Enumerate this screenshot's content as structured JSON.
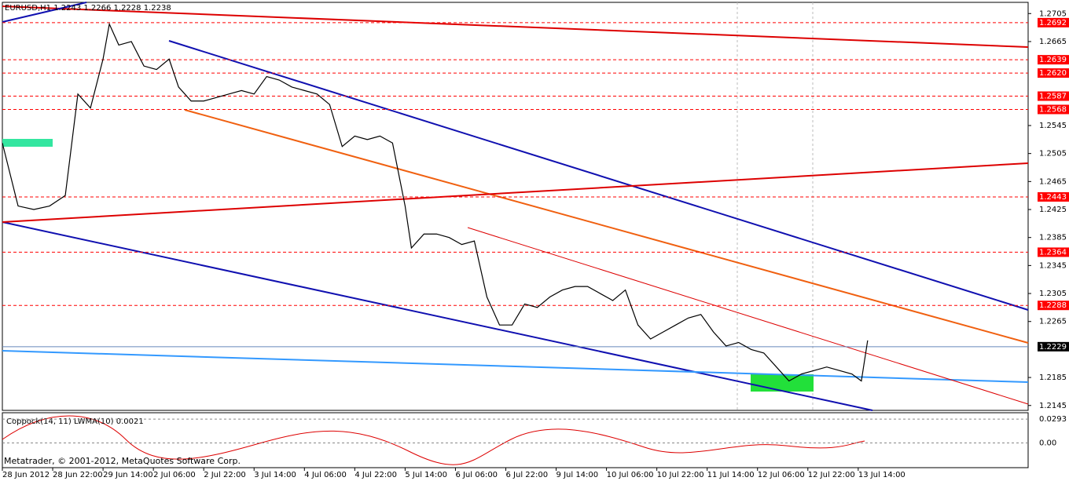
{
  "chart_data": {
    "type": "line",
    "title": "EURUSD,H1  1.2243 1.2266 1.2228 1.2238",
    "x": [
      0,
      5,
      10,
      15,
      20,
      24,
      28,
      32,
      34,
      37,
      41,
      45,
      49,
      53,
      56,
      60,
      64,
      68,
      72,
      76,
      80,
      84,
      88,
      92,
      96,
      100,
      104,
      108,
      112,
      116,
      120,
      124,
      128,
      130,
      134,
      138,
      142,
      146,
      150,
      154,
      158,
      162,
      166,
      170,
      174,
      178,
      182,
      186,
      190,
      194,
      198,
      202,
      206,
      210,
      214,
      218,
      222,
      226,
      230,
      234,
      238,
      242,
      246,
      250,
      254,
      258,
      262,
      266,
      270,
      273,
      275
    ],
    "series": [
      {
        "color": "#000000",
        "values": [
          1.252,
          1.243,
          1.2425,
          1.243,
          1.2445,
          1.259,
          1.257,
          1.264,
          1.269,
          1.266,
          1.2665,
          1.263,
          1.2625,
          1.264,
          1.26,
          1.258,
          1.258,
          1.2585,
          1.259,
          1.2595,
          1.259,
          1.2615,
          1.261,
          1.26,
          1.2595,
          1.259,
          1.2575,
          1.2515,
          1.253,
          1.2525,
          1.253,
          1.252,
          1.243,
          1.237,
          1.239,
          1.239,
          1.2385,
          1.2375,
          1.238,
          1.23,
          1.226,
          1.226,
          1.229,
          1.2285,
          1.23,
          1.231,
          1.2315,
          1.2315,
          1.2305,
          1.2295,
          1.231,
          1.226,
          1.224,
          1.225,
          1.226,
          1.227,
          1.2275,
          1.225,
          1.223,
          1.2235,
          1.2225,
          1.222,
          1.22,
          1.218,
          1.219,
          1.2195,
          1.22,
          1.2195,
          1.219,
          1.218,
          1.2238
        ]
      }
    ],
    "xlim": [
      0,
      326
    ],
    "xticks": [
      {
        "value": 0,
        "label": "28 Jun 2012"
      },
      {
        "value": 16,
        "label": "28 Jun 22:00"
      },
      {
        "value": 32,
        "label": "29 Jun 14:00"
      },
      {
        "value": 48,
        "label": "2 Jul 06:00"
      },
      {
        "value": 64,
        "label": "2 Jul 22:00"
      },
      {
        "value": 80,
        "label": "3 Jul 14:00"
      },
      {
        "value": 96,
        "label": "4 Jul 06:00"
      },
      {
        "value": 112,
        "label": "4 Jul 22:00"
      },
      {
        "value": 128,
        "label": "5 Jul 14:00"
      },
      {
        "value": 144,
        "label": "6 Jul 06:00"
      },
      {
        "value": 160,
        "label": "6 Jul 22:00"
      },
      {
        "value": 176,
        "label": "9 Jul 14:00"
      },
      {
        "value": 192,
        "label": "10 Jul 06:00"
      },
      {
        "value": 208,
        "label": "10 Jul 22:00"
      },
      {
        "value": 224,
        "label": "11 Jul 14:00"
      },
      {
        "value": 240,
        "label": "12 Jul 06:00"
      },
      {
        "value": 256,
        "label": "12 Jul 22:00"
      },
      {
        "value": 272,
        "label": "13 Jul 14:00"
      }
    ],
    "ylim": [
      1.2138,
      1.2721
    ],
    "yticks": [
      1.2705,
      1.2665,
      1.2545,
      1.2505,
      1.2465,
      1.2425,
      1.2385,
      1.2345,
      1.2305,
      1.2265,
      1.2185,
      1.2145
    ],
    "levels": [
      1.2692,
      1.2639,
      {
        "value": 1.262,
        "label": "1.2620"
      },
      1.2587,
      1.2568,
      1.2443,
      1.2364,
      1.2288
    ],
    "level_color": "#ff0000",
    "current_price": 1.2229,
    "indicator": {
      "title": "Coppock(14, 11) LWMA(10) 0.0021",
      "ylim": [
        -0.0303,
        0.0371
      ],
      "yticks": [
        0.0293,
        {
          "value": 0,
          "label": "0.00"
        }
      ]
    },
    "footer": "Metatrader, © 2001-2012, MetaQuotes Software Corp."
  }
}
